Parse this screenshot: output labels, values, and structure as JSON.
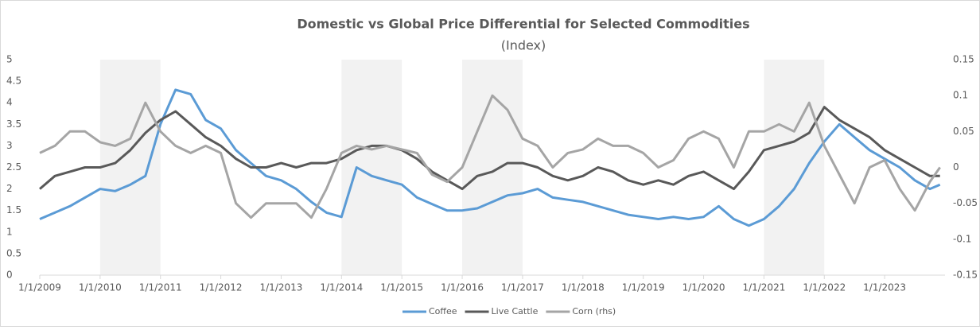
{
  "chart_data": {
    "type": "line",
    "title": "Domestic vs Global Price Differential for Selected Commodities",
    "subtitle": "(Index)",
    "x": [
      "1/1/2009",
      "4/1/2009",
      "7/1/2009",
      "10/1/2009",
      "1/1/2010",
      "4/1/2010",
      "7/1/2010",
      "10/1/2010",
      "1/1/2011",
      "4/1/2011",
      "7/1/2011",
      "10/1/2011",
      "1/1/2012",
      "4/1/2012",
      "7/1/2012",
      "10/1/2012",
      "1/1/2013",
      "4/1/2013",
      "7/1/2013",
      "10/1/2013",
      "1/1/2014",
      "4/1/2014",
      "7/1/2014",
      "10/1/2014",
      "1/1/2015",
      "4/1/2015",
      "7/1/2015",
      "10/1/2015",
      "1/1/2016",
      "4/1/2016",
      "7/1/2016",
      "10/1/2016",
      "1/1/2017",
      "4/1/2017",
      "7/1/2017",
      "10/1/2017",
      "1/1/2018",
      "4/1/2018",
      "7/1/2018",
      "10/1/2018",
      "1/1/2019",
      "4/1/2019",
      "7/1/2019",
      "10/1/2019",
      "1/1/2020",
      "4/1/2020",
      "7/1/2020",
      "10/1/2020",
      "1/1/2021",
      "4/1/2021",
      "7/1/2021",
      "10/1/2021",
      "1/1/2022",
      "4/1/2022",
      "7/1/2022",
      "10/1/2022",
      "1/1/2023",
      "4/1/2023",
      "7/1/2023",
      "10/1/2023",
      "12/1/2023"
    ],
    "series": [
      {
        "name": "Coffee",
        "color": "#5b9bd5",
        "values": [
          1.3,
          1.45,
          1.6,
          1.8,
          2.0,
          1.95,
          2.1,
          2.3,
          3.5,
          4.3,
          4.2,
          3.6,
          3.4,
          2.9,
          2.6,
          2.3,
          2.2,
          2.0,
          1.7,
          1.45,
          1.35,
          2.5,
          2.3,
          2.2,
          2.1,
          1.8,
          1.65,
          1.5,
          1.5,
          1.55,
          1.7,
          1.85,
          1.9,
          2.0,
          1.8,
          1.75,
          1.7,
          1.6,
          1.5,
          1.4,
          1.35,
          1.3,
          1.35,
          1.3,
          1.35,
          1.6,
          1.3,
          1.15,
          1.3,
          1.6,
          2.0,
          2.6,
          3.1,
          3.5,
          3.2,
          2.9,
          2.7,
          2.5,
          2.2,
          2.0,
          2.1
        ]
      },
      {
        "name": "Live Cattle",
        "color": "#595959",
        "values": [
          2.0,
          2.3,
          2.4,
          2.5,
          2.5,
          2.6,
          2.9,
          3.3,
          3.6,
          3.8,
          3.5,
          3.2,
          3.0,
          2.7,
          2.5,
          2.5,
          2.6,
          2.5,
          2.6,
          2.6,
          2.7,
          2.9,
          3.0,
          3.0,
          2.9,
          2.7,
          2.4,
          2.2,
          2.0,
          2.3,
          2.4,
          2.6,
          2.6,
          2.5,
          2.3,
          2.2,
          2.3,
          2.5,
          2.4,
          2.2,
          2.1,
          2.2,
          2.1,
          2.3,
          2.4,
          2.2,
          2.0,
          2.4,
          2.9,
          3.0,
          3.1,
          3.3,
          3.9,
          3.6,
          3.4,
          3.2,
          2.9,
          2.7,
          2.5,
          2.3,
          2.3
        ]
      },
      {
        "name": "Corn (rhs)",
        "color": "#a5a5a5",
        "axis": "y2",
        "values": [
          0.02,
          0.03,
          0.05,
          0.05,
          0.035,
          0.03,
          0.04,
          0.09,
          0.05,
          0.03,
          0.02,
          0.03,
          0.02,
          -0.05,
          -0.07,
          -0.05,
          -0.05,
          -0.05,
          -0.07,
          -0.03,
          0.02,
          0.03,
          0.025,
          0.03,
          0.025,
          0.02,
          -0.01,
          -0.02,
          0.0,
          0.05,
          0.1,
          0.08,
          0.04,
          0.03,
          0.0,
          0.02,
          0.025,
          0.04,
          0.03,
          0.03,
          0.02,
          0.0,
          0.01,
          0.04,
          0.05,
          0.04,
          0.0,
          0.05,
          0.05,
          0.06,
          0.05,
          0.09,
          0.03,
          -0.01,
          -0.05,
          0.0,
          0.01,
          -0.03,
          -0.06,
          -0.02,
          0.0
        ]
      }
    ],
    "shaded_periods": [
      [
        "1/1/2010",
        "1/1/2011"
      ],
      [
        "1/1/2014",
        "1/1/2015"
      ],
      [
        "1/1/2016",
        "1/1/2017"
      ],
      [
        "1/1/2021",
        "1/1/2022"
      ]
    ],
    "shade_color": "#f2f2f2",
    "xlim": [
      "1/1/2009",
      "1/1/2024"
    ],
    "xticks": [
      "1/1/2009",
      "1/1/2010",
      "1/1/2011",
      "1/1/2012",
      "1/1/2013",
      "1/1/2014",
      "1/1/2015",
      "1/1/2016",
      "1/1/2017",
      "1/1/2018",
      "1/1/2019",
      "1/1/2020",
      "1/1/2021",
      "1/1/2022",
      "1/1/2023"
    ],
    "ylim": [
      0,
      5
    ],
    "yticks": [
      0,
      0.5,
      1,
      1.5,
      2,
      2.5,
      3,
      3.5,
      4,
      4.5,
      5
    ],
    "y2lim": [
      -0.15,
      0.15
    ],
    "y2ticks": [
      -0.15,
      -0.1,
      -0.05,
      0,
      0.05,
      0.1,
      0.15
    ],
    "legend": "bottom"
  }
}
